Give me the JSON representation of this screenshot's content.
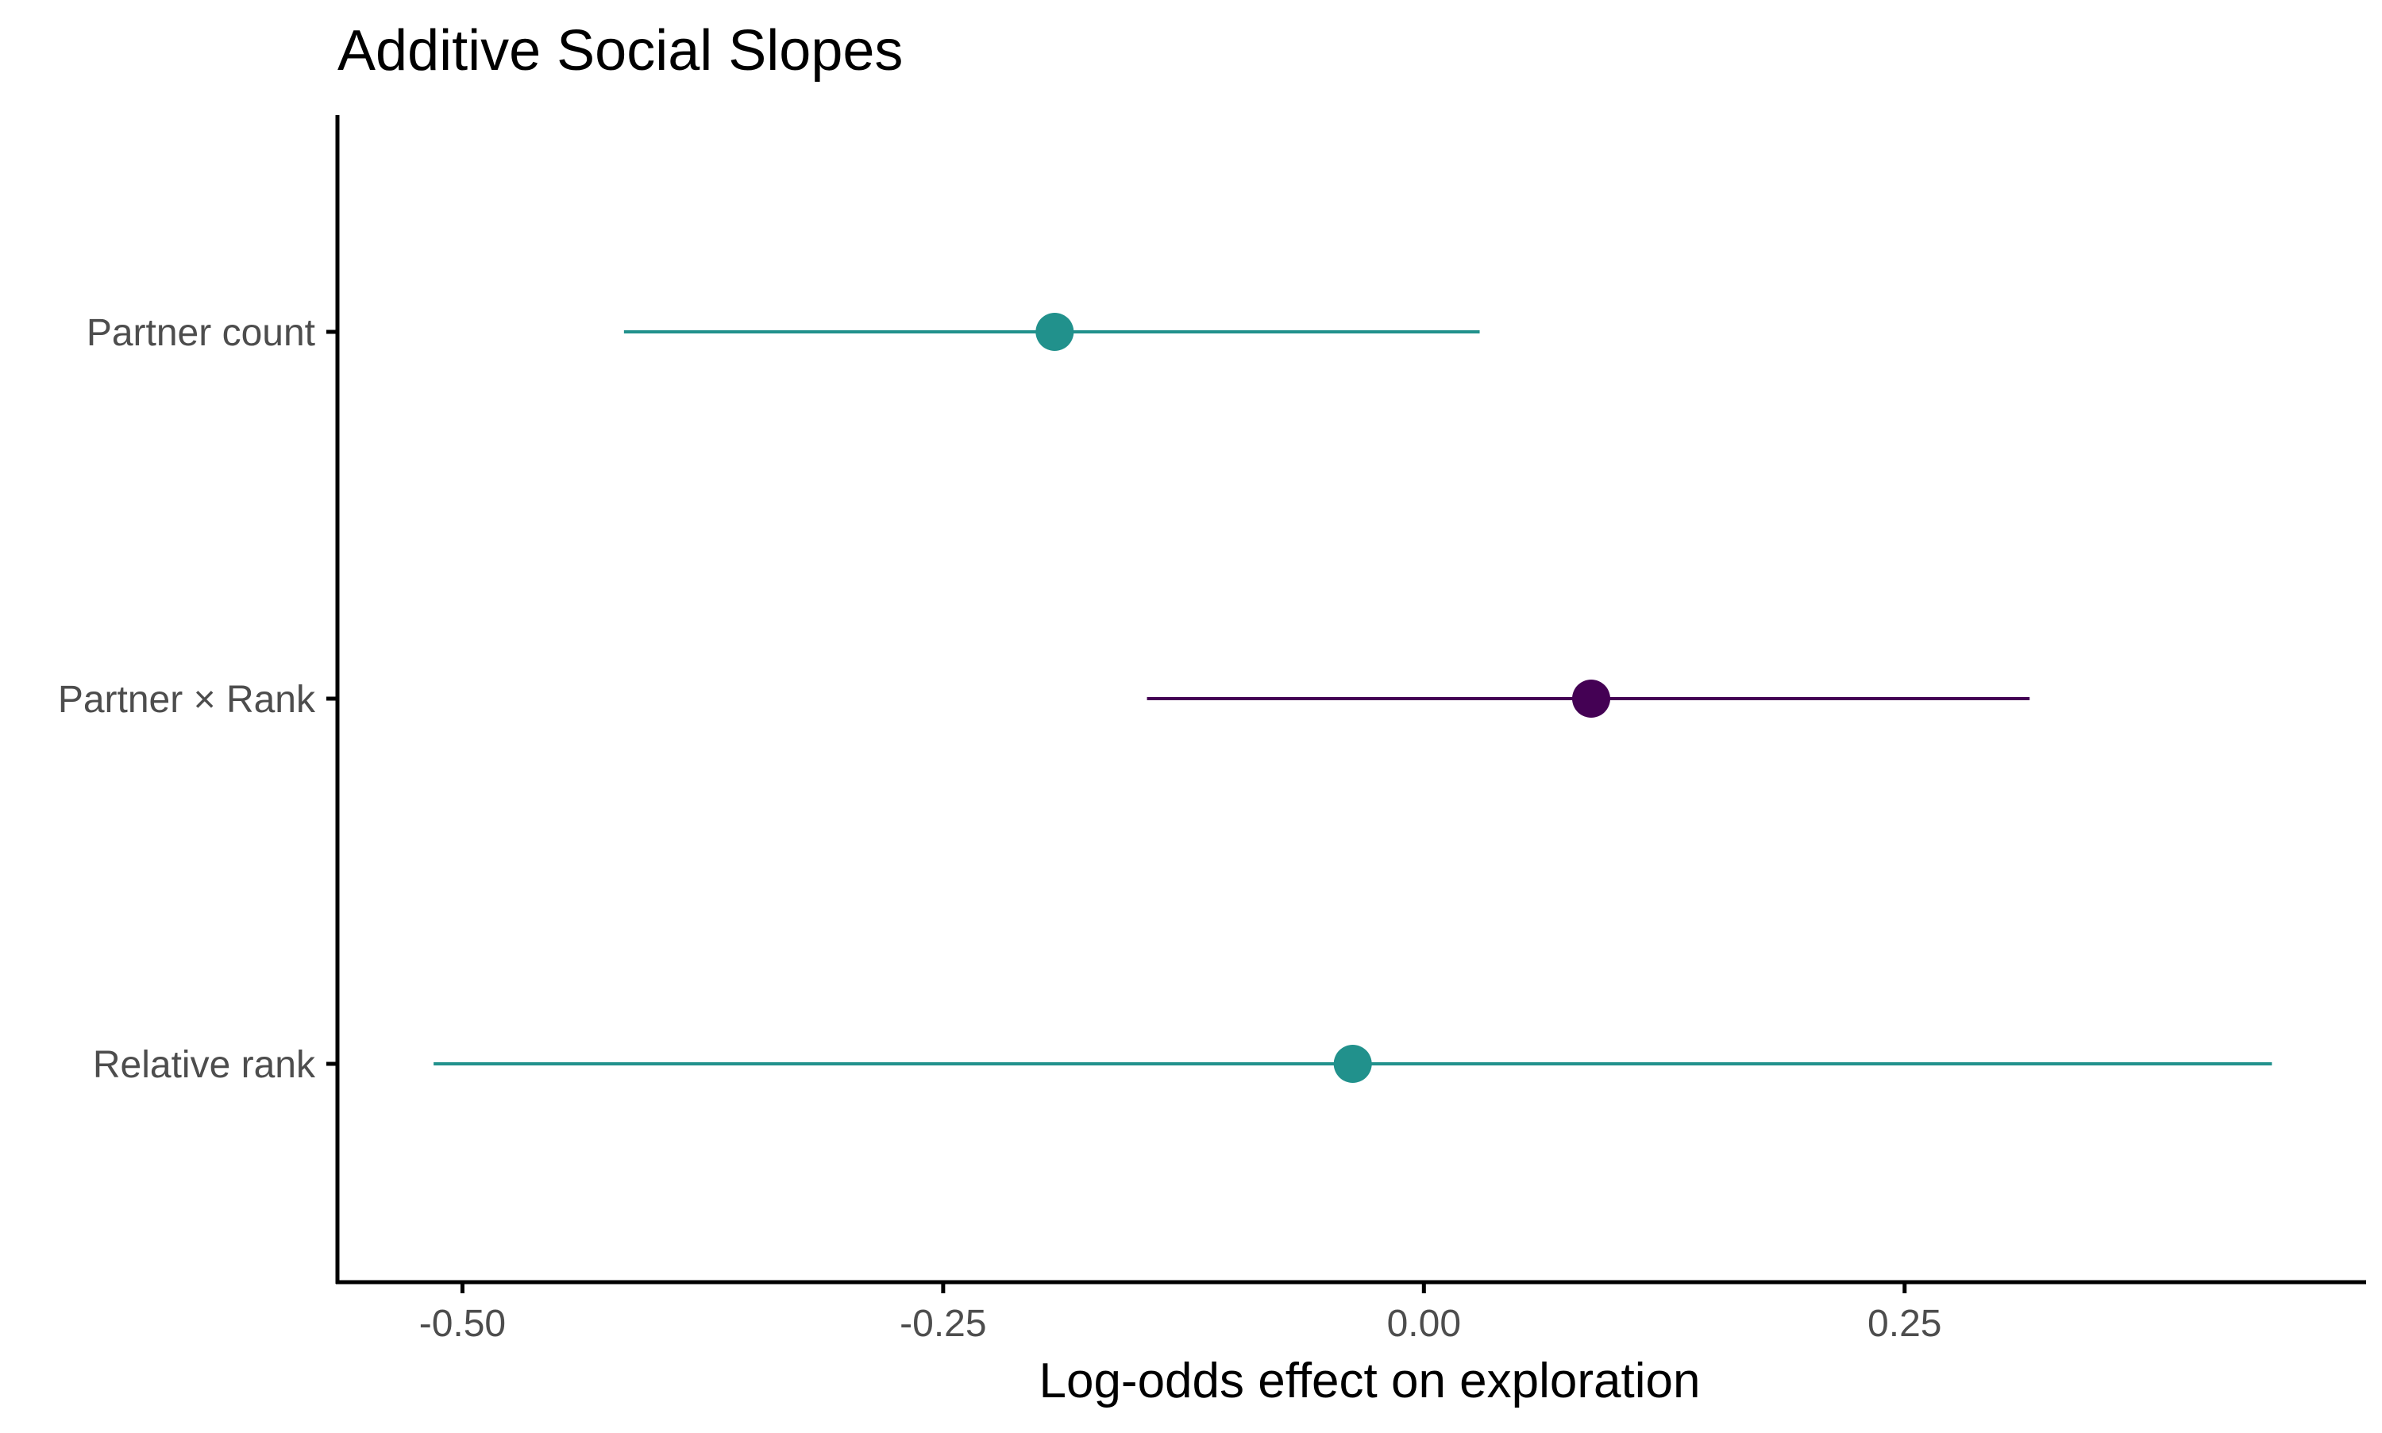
{
  "chart_data": {
    "type": "forest",
    "title": "Additive Social Slopes",
    "xlabel": "Log-odds effect on exploration",
    "ylabel": "",
    "xlim": [
      -0.565,
      0.49
    ],
    "x_ticks": [
      -0.5,
      -0.25,
      0.0,
      0.25
    ],
    "x_tick_labels": [
      "-0.50",
      "-0.25",
      "0.00",
      "0.25"
    ],
    "categories": [
      "Partner count",
      "Partner × Rank",
      "Relative rank"
    ],
    "estimates": [
      {
        "term": "Partner count",
        "estimate": -0.192,
        "lower": -0.416,
        "upper": 0.029,
        "color": "#21918c"
      },
      {
        "term": "Partner × Rank",
        "estimate": 0.087,
        "lower": -0.144,
        "upper": 0.315,
        "color": "#440154"
      },
      {
        "term": "Relative rank",
        "estimate": -0.037,
        "lower": -0.515,
        "upper": 0.441,
        "color": "#21918c"
      }
    ],
    "grid": false,
    "legend": "none"
  }
}
